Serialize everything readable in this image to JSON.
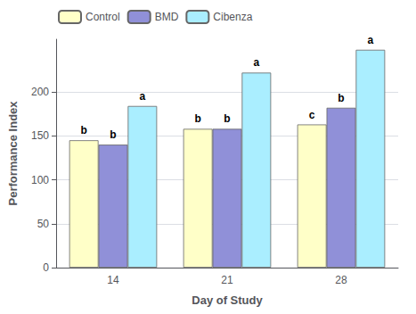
{
  "chart_data": {
    "type": "bar",
    "xlabel": "Day of Study",
    "ylabel": "Performance Index",
    "categories": [
      "14",
      "21",
      "28"
    ],
    "series": [
      {
        "name": "Control",
        "color": "#FFFFC8",
        "values": [
          145,
          158,
          163
        ],
        "annotations": [
          "b",
          "b",
          "c"
        ]
      },
      {
        "name": "BMD",
        "color": "#9090D8",
        "values": [
          140,
          158,
          182
        ],
        "annotations": [
          "b",
          "b",
          "b"
        ]
      },
      {
        "name": "Cibenza",
        "color": "#AAEEFF",
        "values": [
          184,
          222,
          248
        ],
        "annotations": [
          "a",
          "a",
          "a"
        ]
      }
    ],
    "ylim": [
      0,
      260
    ],
    "yticks": [
      0,
      50,
      100,
      150,
      200
    ],
    "grid": true,
    "legend": "upper left"
  }
}
